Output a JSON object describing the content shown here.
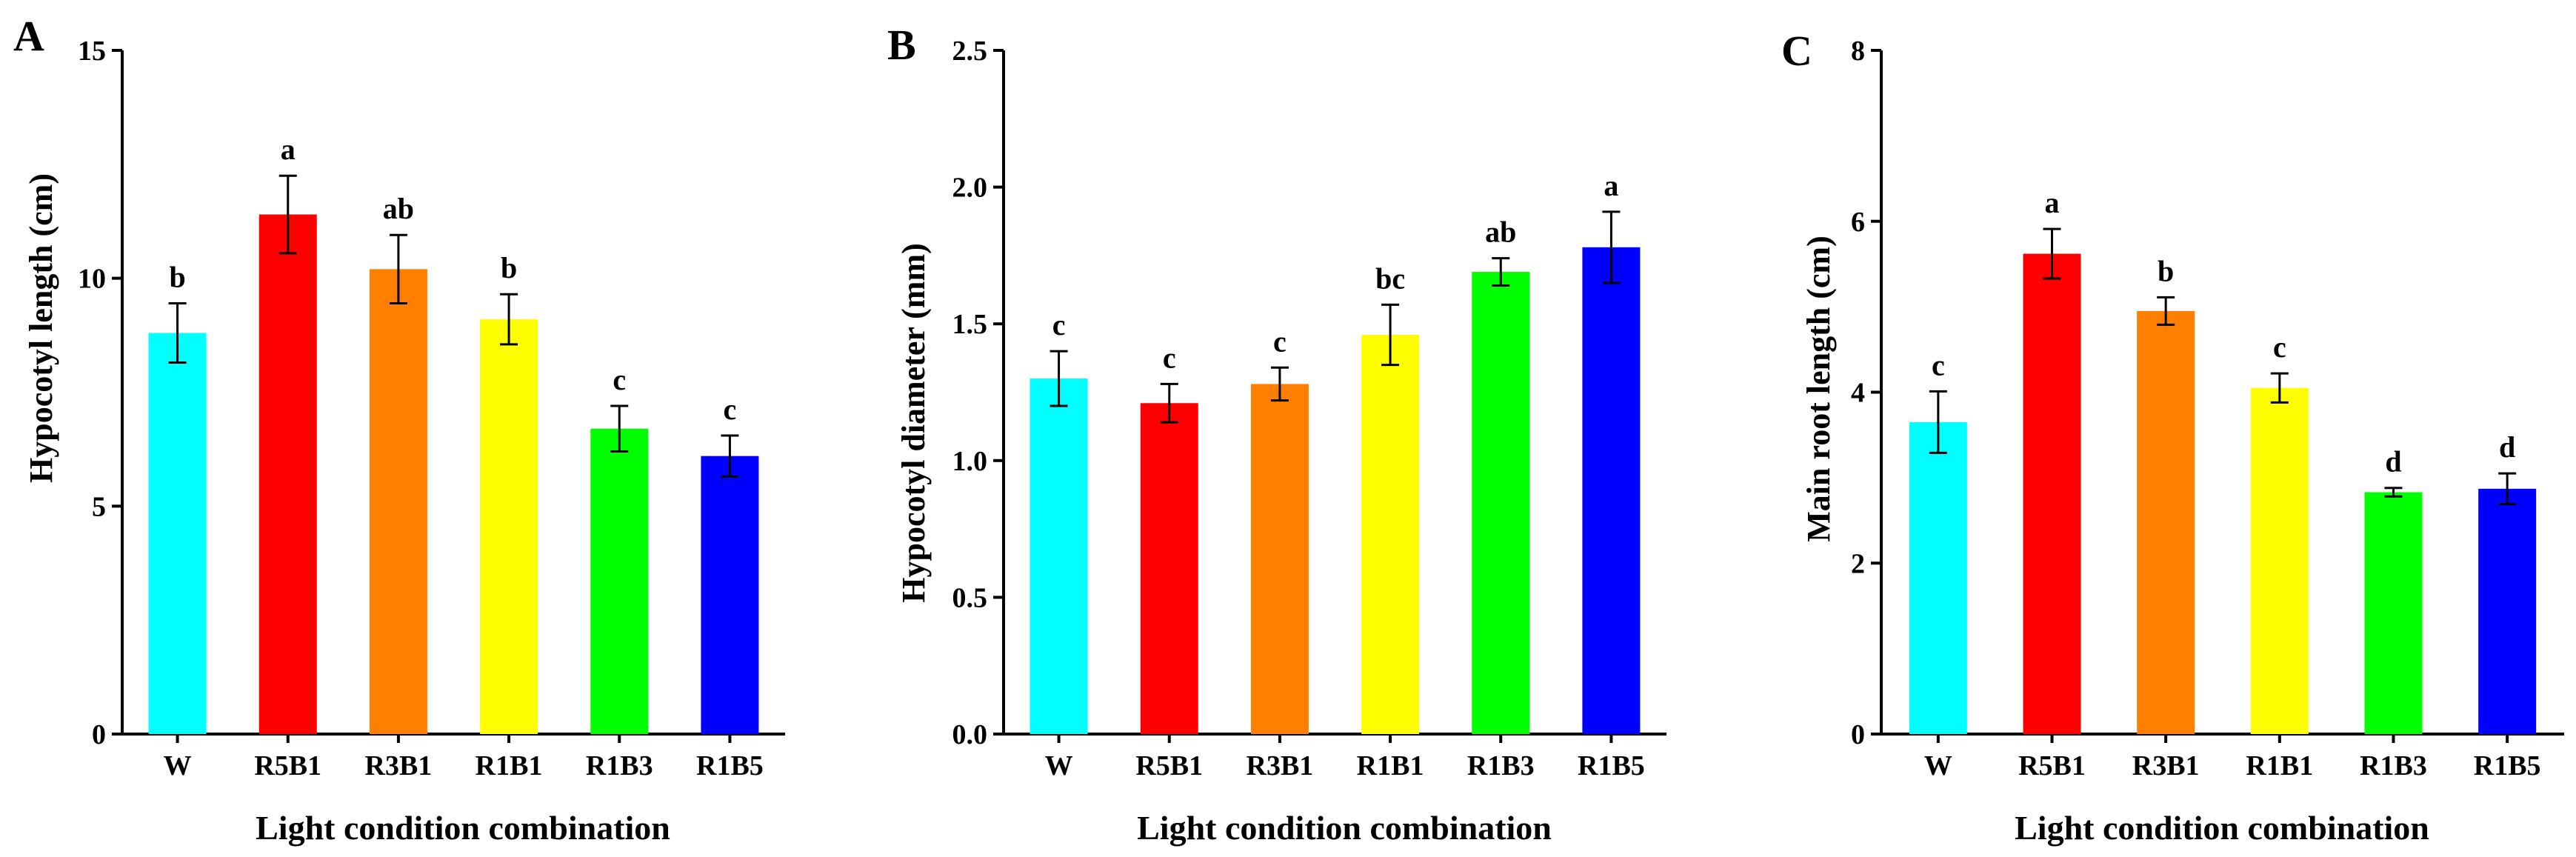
{
  "chart_data": [
    {
      "type": "bar",
      "panel": "A",
      "xlabel": "Light condition combination",
      "ylabel": "Hypocotyl length (cm)",
      "ylim": [
        0,
        15
      ],
      "yticks": [
        0,
        5,
        10,
        15
      ],
      "ytick_labels": [
        "0",
        "5",
        "10",
        "15"
      ],
      "categories": [
        "W",
        "R5B1",
        "R3B1",
        "R1B1",
        "R1B3",
        "R1B5"
      ],
      "values": [
        8.8,
        11.4,
        10.2,
        9.1,
        6.7,
        6.1
      ],
      "errors": [
        0.65,
        0.85,
        0.75,
        0.55,
        0.5,
        0.45
      ],
      "significance": [
        "b",
        "a",
        "ab",
        "b",
        "c",
        "c"
      ],
      "colors": [
        "#00ffff",
        "#ff0000",
        "#ff8000",
        "#ffff00",
        "#00ff00",
        "#0000ff"
      ]
    },
    {
      "type": "bar",
      "panel": "B",
      "xlabel": "Light condition combination",
      "ylabel": "Hypocotyl diameter (mm)",
      "ylim": [
        0,
        2.5
      ],
      "yticks": [
        0,
        0.5,
        1.0,
        1.5,
        2.0,
        2.5
      ],
      "ytick_labels": [
        "0.0",
        "0.5",
        "1.0",
        "1.5",
        "2.0",
        "2.5"
      ],
      "categories": [
        "W",
        "R5B1",
        "R3B1",
        "R1B1",
        "R1B3",
        "R1B5"
      ],
      "values": [
        1.3,
        1.21,
        1.28,
        1.46,
        1.69,
        1.78
      ],
      "errors": [
        0.1,
        0.07,
        0.06,
        0.11,
        0.05,
        0.13
      ],
      "significance": [
        "c",
        "c",
        "c",
        "bc",
        "ab",
        "a"
      ],
      "colors": [
        "#00ffff",
        "#ff0000",
        "#ff8000",
        "#ffff00",
        "#00ff00",
        "#0000ff"
      ]
    },
    {
      "type": "bar",
      "panel": "C",
      "xlabel": "Light condition combination",
      "ylabel": "Main root length (cm)",
      "ylim": [
        0,
        8
      ],
      "yticks": [
        0,
        2,
        4,
        6,
        8
      ],
      "ytick_labels": [
        "0",
        "2",
        "4",
        "6",
        "8"
      ],
      "categories": [
        "W",
        "R5B1",
        "R3B1",
        "R1B1",
        "R1B3",
        "R1B5"
      ],
      "values": [
        3.65,
        5.62,
        4.95,
        4.05,
        2.83,
        2.87
      ],
      "errors": [
        0.36,
        0.29,
        0.16,
        0.17,
        0.05,
        0.18
      ],
      "significance": [
        "c",
        "a",
        "b",
        "c",
        "d",
        "d"
      ],
      "colors": [
        "#00ffff",
        "#ff0000",
        "#ff8000",
        "#ffff00",
        "#00ff00",
        "#0000ff"
      ]
    }
  ]
}
